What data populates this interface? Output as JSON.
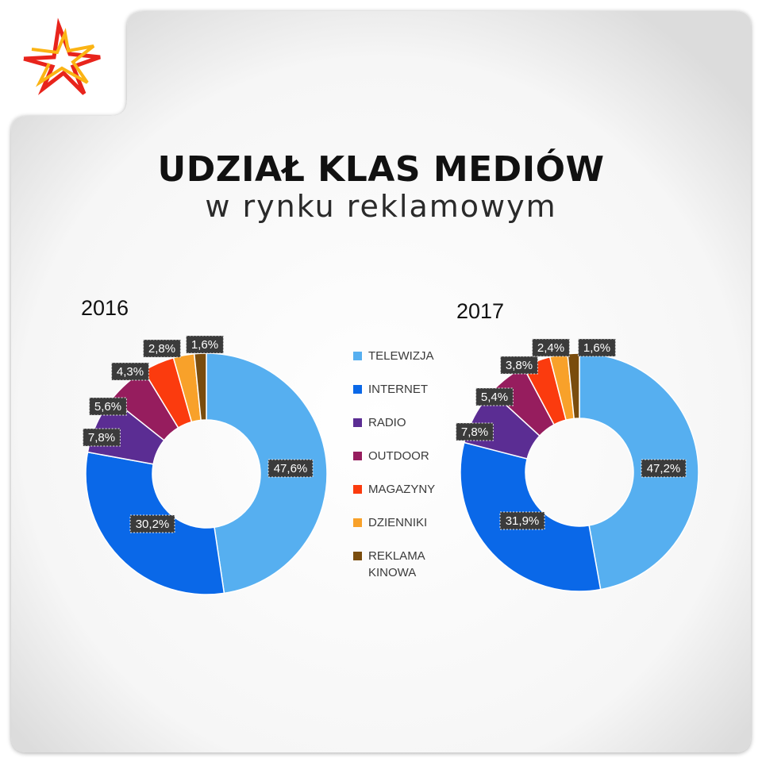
{
  "header": {
    "title": "UDZIAŁ KLAS MEDIÓW",
    "subtitle": "w rynku reklamowym",
    "logo_icon": "star-burst-icon"
  },
  "colors": {
    "TELEWIZJA": "#56aff0",
    "INTERNET": "#0a68e8",
    "RADIO": "#5b2d93",
    "OUTDOOR": "#961d5e",
    "MAGAZYNY": "#fb3b0e",
    "DZIENNIKI": "#f8a12a",
    "REKLAMA KINOWA": "#7a4c0d",
    "label_box": "#3b3b3b"
  },
  "legend": {
    "items": [
      {
        "label": "TELEWIZJA"
      },
      {
        "label": "INTERNET"
      },
      {
        "label": "RADIO"
      },
      {
        "label": "OUTDOOR"
      },
      {
        "label": "MAGAZYNY"
      },
      {
        "label": "DZIENNIKI"
      },
      {
        "label": "REKLAMA KINOWA",
        "lines": [
          "REKLAMA",
          "KINOWA"
        ]
      }
    ]
  },
  "chart_data": [
    {
      "type": "pie",
      "subtype": "donut",
      "title": "2016",
      "categories": [
        "TELEWIZJA",
        "INTERNET",
        "RADIO",
        "OUTDOOR",
        "MAGAZYNY",
        "DZIENNIKI",
        "REKLAMA KINOWA"
      ],
      "values": [
        47.6,
        30.2,
        7.8,
        5.6,
        4.3,
        2.8,
        1.6
      ],
      "labels": [
        "47,6%",
        "30,2%",
        "7,8%",
        "5,6%",
        "4,3%",
        "2,8%",
        "1,6%"
      ]
    },
    {
      "type": "pie",
      "subtype": "donut",
      "title": "2017",
      "categories": [
        "TELEWIZJA",
        "INTERNET",
        "RADIO",
        "OUTDOOR",
        "MAGAZYNY",
        "DZIENNIKI",
        "REKLAMA KINOWA"
      ],
      "values": [
        47.2,
        31.9,
        7.8,
        5.4,
        3.8,
        2.4,
        1.6
      ],
      "labels": [
        "47,2%",
        "31,9%",
        "7,8%",
        "5,4%",
        "3,8%",
        "2,4%",
        "1,6%"
      ]
    }
  ]
}
